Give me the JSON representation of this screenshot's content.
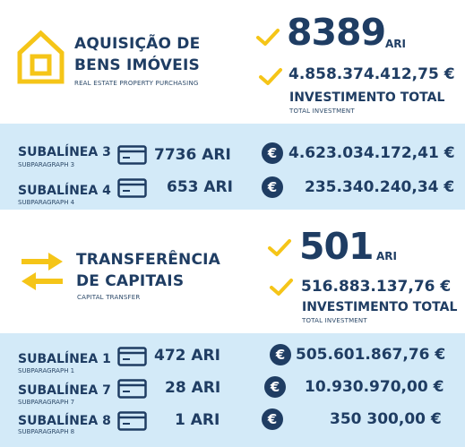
{
  "section1": {
    "title_line1": "AQUISIÇÃO DE",
    "title_line2": "BENS IMÓVEIS",
    "subtitle": "REAL ESTATE PROPERTY PURCHASING",
    "count": "8389",
    "count_unit": "ARI",
    "total_amount": "4.858.374.412,75 €",
    "total_label": "INVESTIMENTO TOTAL",
    "total_sublabel": "TOTAL INVESTMENT",
    "rows": [
      {
        "label": "SUBALÍNEA 3",
        "sublabel": "SUBPARAGRAPH 3",
        "count": "7736 ARI",
        "amount": "4.623.034.172,41 €"
      },
      {
        "label": "SUBALÍNEA 4",
        "sublabel": "SUBPARAGRAPH 4",
        "count": "653 ARI",
        "amount": "235.340.240,34 €"
      }
    ]
  },
  "section2": {
    "title_line1": "TRANSFERÊNCIA",
    "title_line2": "DE CAPITAIS",
    "subtitle": "CAPITAL TRANSFER",
    "count": "501",
    "count_unit": "ARI",
    "total_amount": "516.883.137,76 €",
    "total_label": "INVESTIMENTO TOTAL",
    "total_sublabel": "TOTAL INVESTMENT",
    "rows": [
      {
        "label": "SUBALÍNEA 1",
        "sublabel": "SUBPARAGRAPH 1",
        "count": "472 ARI",
        "amount": "505.601.867,76 €"
      },
      {
        "label": "SUBALÍNEA 7",
        "sublabel": "SUBPARAGRAPH 7",
        "count": "28 ARI",
        "amount": "10.930.970,00 €"
      },
      {
        "label": "SUBALÍNEA 8",
        "sublabel": "SUBPARAGRAPH 8",
        "count": "1 ARI",
        "amount": "350 300,00 €"
      }
    ]
  },
  "icons": {
    "house": "house-icon",
    "arrows": "transfer-arrows-icon",
    "check": "check-icon",
    "card": "card-icon",
    "euro_symbol": "€"
  },
  "colors": {
    "navy": "#1f3d63",
    "yellow": "#f5c518",
    "band": "#d3eaf8"
  }
}
